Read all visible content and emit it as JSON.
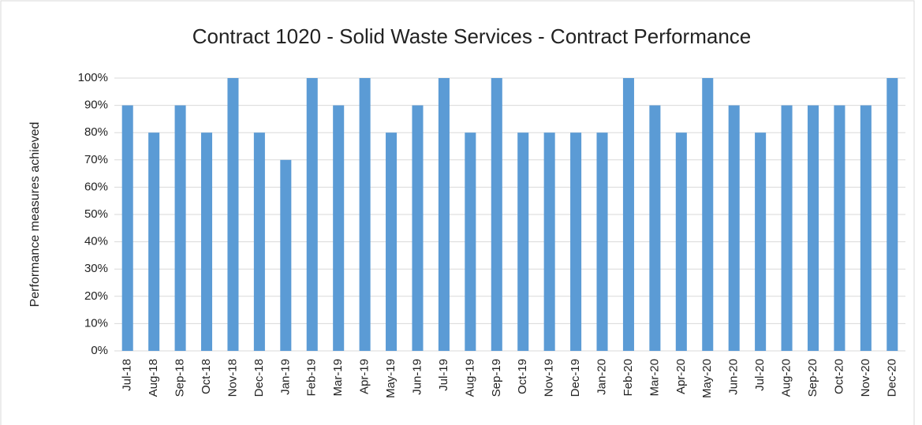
{
  "chart_data": {
    "type": "bar",
    "title": "Contract 1020 - Solid Waste Services - Contract Performance",
    "y_label": "Performance measures achieved",
    "categories": [
      "Jul-18",
      "Aug-18",
      "Sep-18",
      "Oct-18",
      "Nov-18",
      "Dec-18",
      "Jan-19",
      "Feb-19",
      "Mar-19",
      "Apr-19",
      "May-19",
      "Jun-19",
      "Jul-19",
      "Aug-19",
      "Sep-19",
      "Oct-19",
      "Nov-19",
      "Dec-19",
      "Jan-20",
      "Feb-20",
      "Mar-20",
      "Apr-20",
      "May-20",
      "Jun-20",
      "Jul-20",
      "Aug-20",
      "Sep-20",
      "Oct-20",
      "Nov-20",
      "Dec-20"
    ],
    "values": [
      90,
      80,
      90,
      80,
      100,
      80,
      70,
      100,
      90,
      100,
      80,
      90,
      100,
      80,
      100,
      80,
      80,
      80,
      80,
      100,
      90,
      80,
      100,
      90,
      80,
      90,
      90,
      90,
      90,
      100
    ],
    "color": "#5b9bd5",
    "ylim": [
      0,
      100
    ],
    "yticks": [
      {
        "value": 0,
        "label": "0%"
      },
      {
        "value": 10,
        "label": "10%"
      },
      {
        "value": 20,
        "label": "20%"
      },
      {
        "value": 30,
        "label": "30%"
      },
      {
        "value": 40,
        "label": "40%"
      },
      {
        "value": 50,
        "label": "50%"
      },
      {
        "value": 60,
        "label": "60%"
      },
      {
        "value": 70,
        "label": "70%"
      },
      {
        "value": 80,
        "label": "80%"
      },
      {
        "value": 90,
        "label": "90%"
      },
      {
        "value": 100,
        "label": "100%"
      }
    ],
    "grid": true
  }
}
